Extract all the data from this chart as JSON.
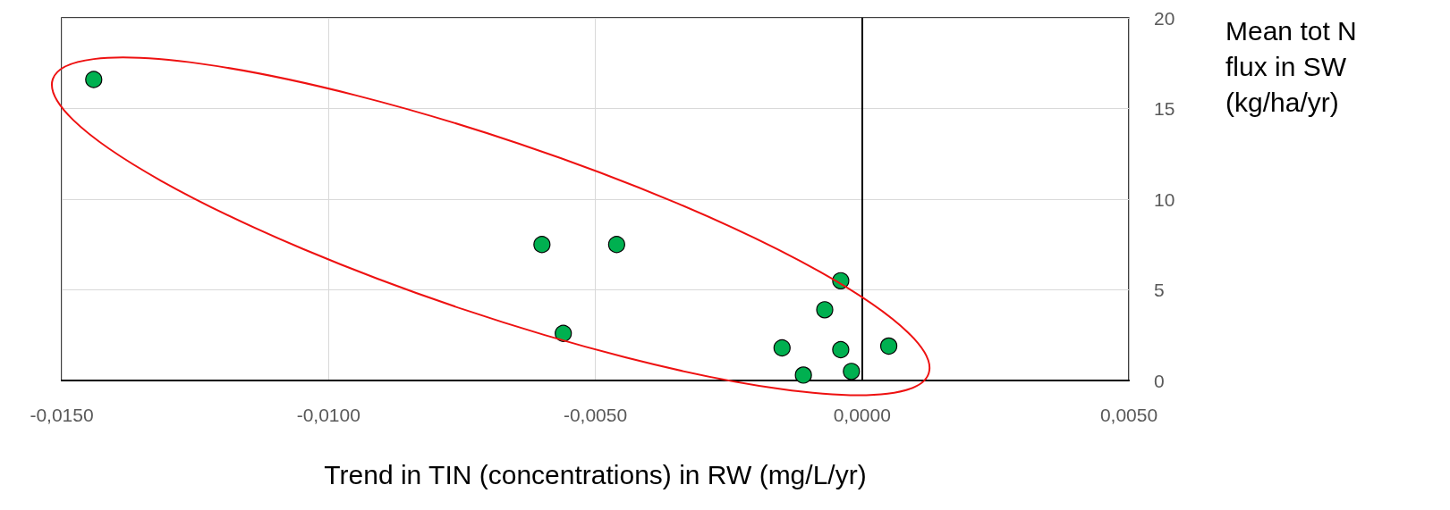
{
  "chart_data": {
    "type": "scatter",
    "xlabel": "Trend in TIN (concentrations) in RW (mg/L/yr)",
    "ylabel": "Mean tot N\nflux in SW\n(kg/ha/yr)",
    "x": [
      -0.0144,
      -0.006,
      -0.0046,
      -0.0056,
      -0.0004,
      -0.0007,
      -0.0015,
      -0.0004,
      0.0005,
      -0.0011,
      -0.0002
    ],
    "values": [
      16.6,
      7.5,
      7.5,
      2.6,
      5.5,
      3.9,
      1.8,
      1.7,
      1.9,
      0.3,
      0.5
    ],
    "color": "#00b050",
    "marker": "circle",
    "xlim": [
      -0.015,
      0.005
    ],
    "xticks": [
      {
        "value": -0.015,
        "label": "-0,0150"
      },
      {
        "value": -0.01,
        "label": "-0,0100"
      },
      {
        "value": -0.005,
        "label": "-0,0050"
      },
      {
        "value": 0,
        "label": "0,0000"
      },
      {
        "value": 0.005,
        "label": "0,0050"
      }
    ],
    "ylim": [
      0,
      20
    ],
    "yticks": [
      0,
      5,
      10,
      15,
      20
    ],
    "grid": true,
    "ref_lines": [
      {
        "axis": "x",
        "value": 0,
        "color": "#000000"
      }
    ]
  }
}
